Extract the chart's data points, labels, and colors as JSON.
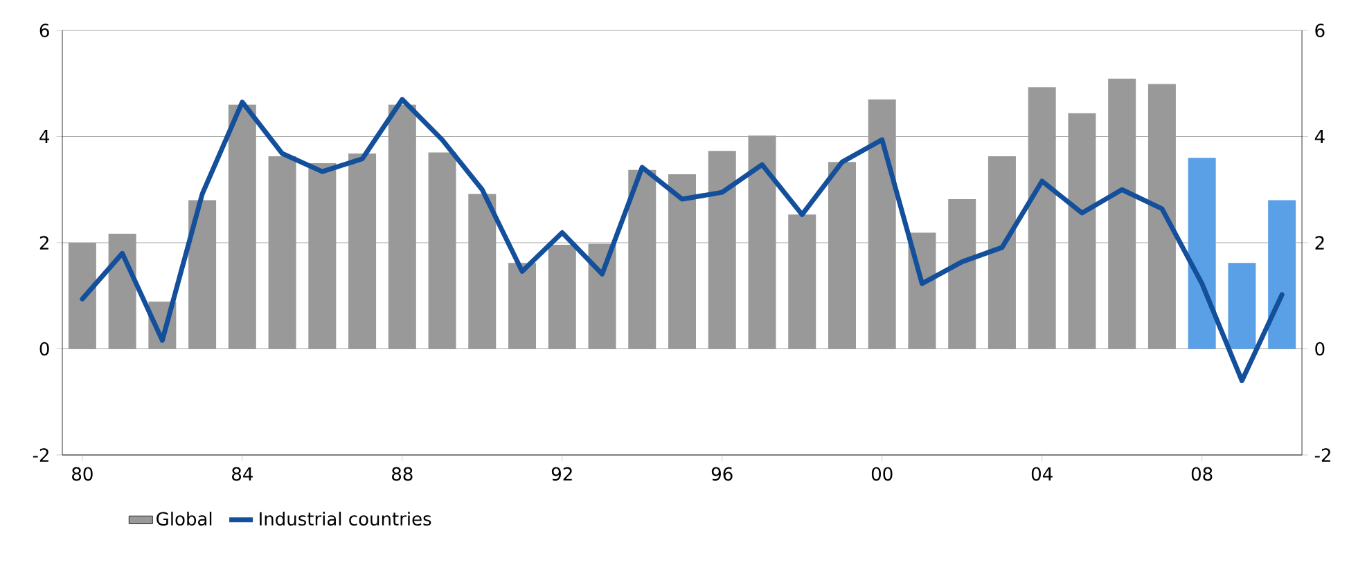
{
  "chart_data": {
    "type": "bar",
    "categories": [
      "80",
      null,
      null,
      null,
      "84",
      null,
      null,
      null,
      "88",
      null,
      null,
      null,
      "92",
      null,
      null,
      null,
      "96",
      null,
      null,
      null,
      "00",
      null,
      null,
      null,
      "04",
      null,
      null,
      null,
      "08",
      null,
      null
    ],
    "series": [
      {
        "name": "Global",
        "color": "#999999",
        "colors": [
          "#999999",
          "#999999",
          "#999999",
          "#999999",
          "#999999",
          "#999999",
          "#999999",
          "#999999",
          "#999999",
          "#999999",
          "#999999",
          "#999999",
          "#999999",
          "#999999",
          "#999999",
          "#999999",
          "#999999",
          "#999999",
          "#999999",
          "#999999",
          "#999999",
          "#999999",
          "#999999",
          "#999999",
          "#999999",
          "#999999",
          "#999999",
          "#999999",
          "#5aa0e6",
          "#5aa0e6",
          "#5aa0e6"
        ],
        "values": [
          2.0,
          2.17,
          0.89,
          2.8,
          4.6,
          3.63,
          3.5,
          3.68,
          4.6,
          3.7,
          2.92,
          1.62,
          1.96,
          1.98,
          3.37,
          3.29,
          3.73,
          4.02,
          2.53,
          3.52,
          4.7,
          2.19,
          2.82,
          3.63,
          4.93,
          4.44,
          5.09,
          4.99,
          3.6,
          1.62,
          2.8
        ]
      },
      {
        "name": "Industrial countries",
        "type": "line",
        "color": "#134f9b",
        "values": [
          0.94,
          1.8,
          0.16,
          2.92,
          4.65,
          3.68,
          3.34,
          3.58,
          4.7,
          3.94,
          3.0,
          1.46,
          2.19,
          1.41,
          3.42,
          2.82,
          2.95,
          3.47,
          2.53,
          3.52,
          3.94,
          1.23,
          1.64,
          1.91,
          3.16,
          2.56,
          3.0,
          2.64,
          1.23,
          -0.6,
          1.02
        ]
      }
    ],
    "ylim": [
      -2,
      6
    ],
    "yticks": [
      -2,
      0,
      2,
      4,
      6
    ],
    "y2lim": [
      -2,
      6
    ],
    "y2ticks": [
      -2,
      0,
      2,
      4,
      6
    ],
    "grid": "y",
    "legend": "bottom left",
    "marker": "none",
    "line_style": "solid"
  }
}
